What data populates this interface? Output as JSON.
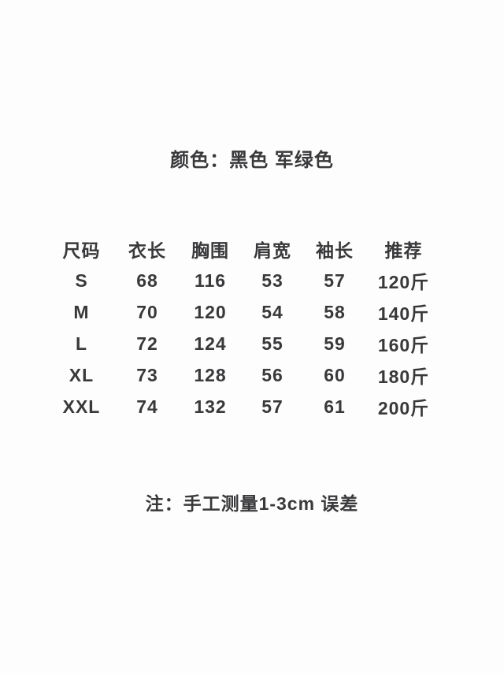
{
  "colors": {
    "background": "#fdfdfd",
    "text": "#39393b"
  },
  "title": "颜色：黑色 军绿色",
  "size_table": {
    "headers": [
      "尺码",
      "衣长",
      "胸围",
      "肩宽",
      "袖长",
      "推荐"
    ],
    "rows": [
      [
        "S",
        "68",
        "116",
        "53",
        "57",
        "120斤"
      ],
      [
        "M",
        "70",
        "120",
        "54",
        "58",
        "140斤"
      ],
      [
        "L",
        "72",
        "124",
        "55",
        "59",
        "160斤"
      ],
      [
        "XL",
        "73",
        "128",
        "56",
        "60",
        "180斤"
      ],
      [
        "XXL",
        "74",
        "132",
        "57",
        "61",
        "200斤"
      ]
    ]
  },
  "note": "注：手工测量1-3cm 误差"
}
